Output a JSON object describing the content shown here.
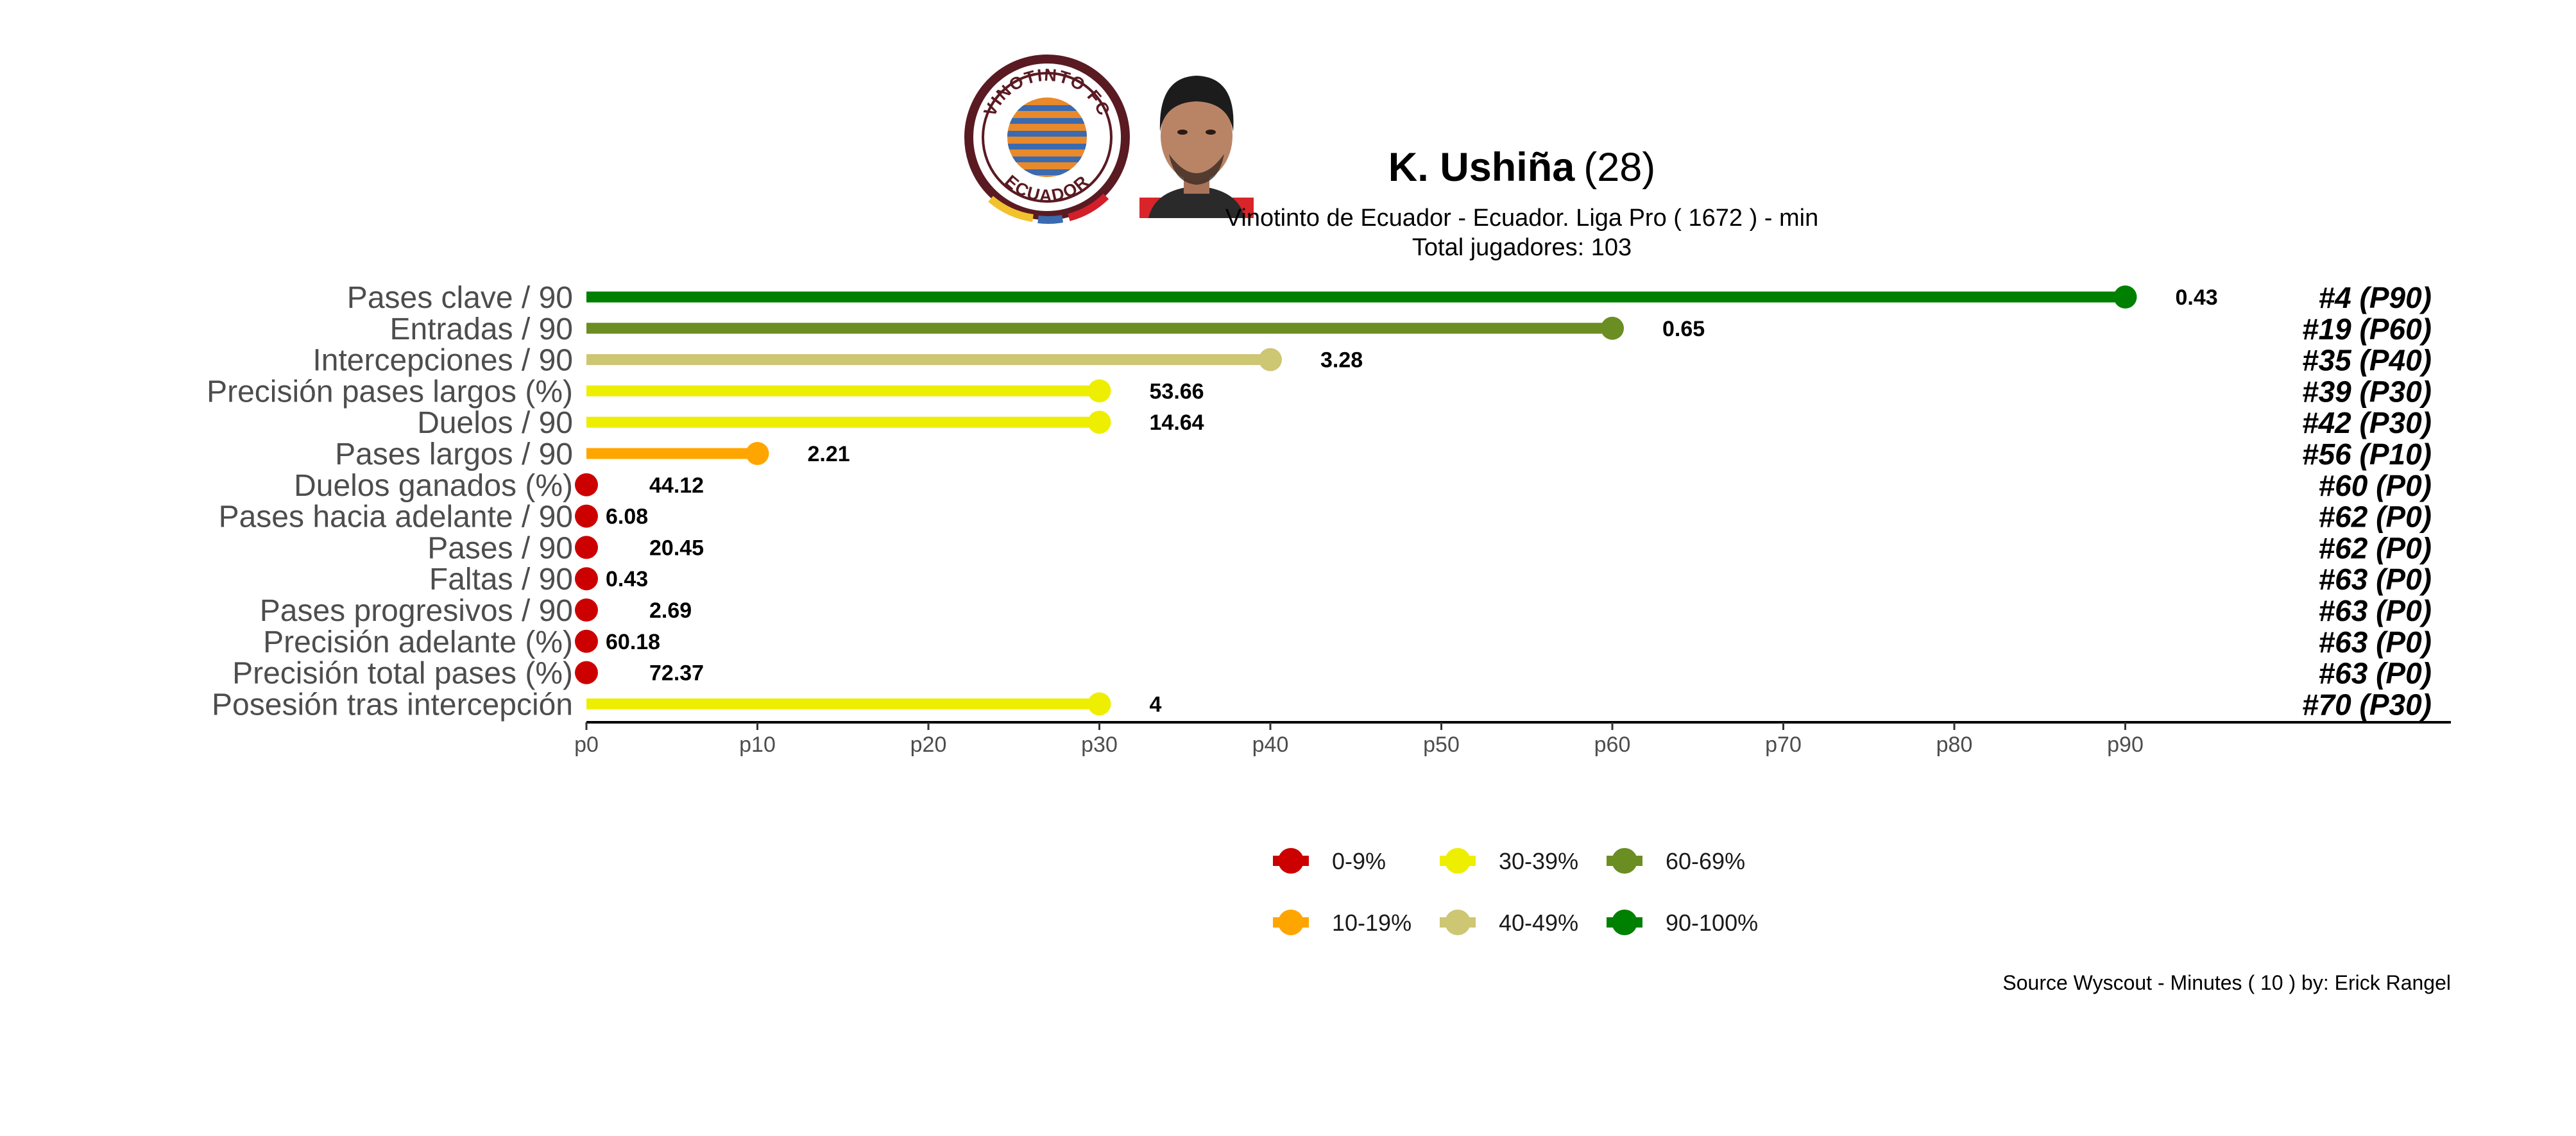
{
  "header": {
    "player_name": "K. Ushiña",
    "player_age": "(28)",
    "subtitle": "Vinotinto de Ecuador  -  Ecuador. Liga Pro  ( 1672 ) - min",
    "total_players": "Total jugadores:  103",
    "club_logo": {
      "top_text": "VINOTINTO FC",
      "bottom_text": "ECUADOR",
      "colors": {
        "ring": "#5a1a22",
        "orange": "#e8892a",
        "blue": "#3a6ab0",
        "yellow": "#f2c12e",
        "red": "#d21f2a"
      }
    },
    "player_photo": {
      "icon": "player-photo",
      "colors": {
        "skin": "#b98466",
        "hair": "#1c1c1c",
        "shirt": "#d9252a"
      }
    }
  },
  "source_note": "Source Wyscout - Minutes ( 10 ) by: Erick Rangel",
  "chart_data": {
    "type": "bar",
    "orientation": "horizontal",
    "style": "lollipop",
    "categories": [
      "Pases clave / 90",
      "Entradas / 90",
      "Intercepciones / 90",
      "Precisión pases largos (%)",
      "Duelos / 90",
      "Pases largos / 90",
      "Duelos ganados (%)",
      "Pases hacia adelante / 90",
      "Pases / 90",
      "Faltas / 90",
      "Pases progresivos / 90",
      "Precisión adelante (%)",
      "Precisión total pases (%)",
      "Posesión tras intercepción"
    ],
    "percentiles": [
      90,
      60,
      40,
      30,
      30,
      10,
      0,
      0,
      0,
      0,
      0,
      0,
      0,
      30
    ],
    "values": [
      "0.43",
      "0.65",
      "3.28",
      "53.66",
      "14.64",
      "2.21",
      "44.12",
      "6.08",
      "20.45",
      "0.43",
      "2.69",
      "60.18",
      "72.37",
      "4"
    ],
    "ranks": [
      "#4 (P90)",
      "#19 (P60)",
      "#35 (P40)",
      "#39 (P30)",
      "#42 (P30)",
      "#56 (P10)",
      "#60 (P0)",
      "#62 (P0)",
      "#62 (P0)",
      "#63 (P0)",
      "#63 (P0)",
      "#63 (P0)",
      "#63 (P0)",
      "#70 (P30)"
    ],
    "bar_colors": [
      "#008000",
      "#6b8e23",
      "#cdc673",
      "#eeee00",
      "#eeee00",
      "#ffa500",
      "#cd0000",
      "#cd0000",
      "#cd0000",
      "#cd0000",
      "#cd0000",
      "#cd0000",
      "#cd0000",
      "#eeee00"
    ],
    "xlim": [
      0,
      100
    ],
    "x_ticks": [
      "p0",
      "p10",
      "p20",
      "p30",
      "p40",
      "p50",
      "p60",
      "p70",
      "p80",
      "p90"
    ],
    "grid": false,
    "legend": {
      "position": "bottom",
      "entries": [
        {
          "label": "0-9%",
          "color": "#cd0000"
        },
        {
          "label": "10-19%",
          "color": "#ffa500"
        },
        {
          "label": "30-39%",
          "color": "#eeee00"
        },
        {
          "label": "40-49%",
          "color": "#cdc673"
        },
        {
          "label": "60-69%",
          "color": "#6b8e23"
        },
        {
          "label": "90-100%",
          "color": "#008000"
        }
      ]
    }
  }
}
